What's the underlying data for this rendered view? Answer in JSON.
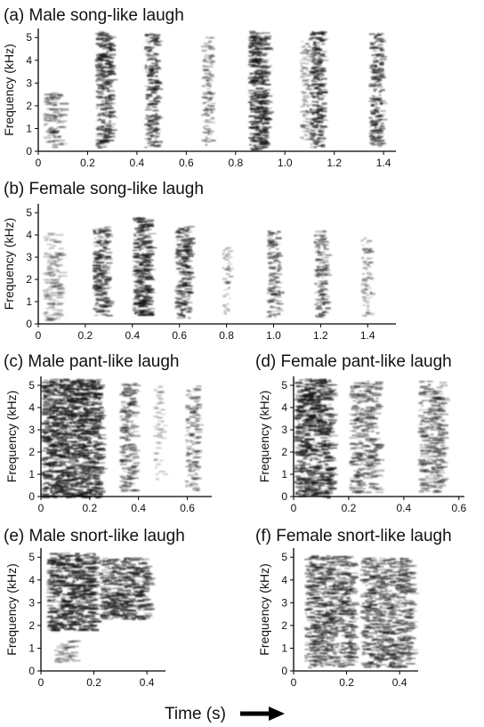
{
  "figure": {
    "x_caption": "Time (s)",
    "arrow_icon": "right-arrow-icon"
  },
  "chart_data": [
    {
      "type": "heatmap",
      "panel": "a",
      "title": "(a) Male song-like laugh",
      "ylabel": "Frequency (kHz)",
      "xlabel": "",
      "xlim": [
        0,
        1.45
      ],
      "ylim": [
        0,
        5.4
      ],
      "xticks": [
        0,
        0.2,
        0.4,
        0.6,
        0.8,
        1.0,
        1.2,
        1.4
      ],
      "xtick_labels": [
        "0",
        "0.2",
        "0.4",
        "0.6",
        "0.8",
        "1.0",
        "1.2",
        "1.4"
      ],
      "yticks": [
        0,
        1,
        2,
        3,
        4,
        5
      ],
      "ytick_labels": [
        "0",
        "1",
        "2",
        "3",
        "4",
        "5"
      ],
      "grid": false,
      "bursts": [
        {
          "t0": 0.02,
          "t1": 0.09,
          "fmin": 0.2,
          "fmax": 2.6,
          "intensity": 0.55
        },
        {
          "t0": 0.23,
          "t1": 0.29,
          "fmin": 0.2,
          "fmax": 5.3,
          "intensity": 0.9
        },
        {
          "t0": 0.43,
          "t1": 0.48,
          "fmin": 0.2,
          "fmax": 5.2,
          "intensity": 0.85
        },
        {
          "t0": 0.66,
          "t1": 0.7,
          "fmin": 0.3,
          "fmax": 5.1,
          "intensity": 0.6
        },
        {
          "t0": 0.85,
          "t1": 0.92,
          "fmin": 0.1,
          "fmax": 5.3,
          "intensity": 0.95
        },
        {
          "t0": 1.06,
          "t1": 1.1,
          "fmin": 0.5,
          "fmax": 5.0,
          "intensity": 0.5
        },
        {
          "t0": 1.1,
          "t1": 1.15,
          "fmin": 0.2,
          "fmax": 5.3,
          "intensity": 0.95
        },
        {
          "t0": 1.34,
          "t1": 1.39,
          "fmin": 0.2,
          "fmax": 5.2,
          "intensity": 0.85
        }
      ]
    },
    {
      "type": "heatmap",
      "panel": "b",
      "title": "(b) Female song-like laugh",
      "ylabel": "Frequency (kHz)",
      "xlabel": "",
      "xlim": [
        0,
        1.52
      ],
      "ylim": [
        0,
        5.4
      ],
      "xticks": [
        0,
        0.2,
        0.4,
        0.6,
        0.8,
        1.0,
        1.2,
        1.4
      ],
      "xtick_labels": [
        "0",
        "0.2",
        "0.4",
        "0.6",
        "0.8",
        "1.0",
        "1.2",
        "1.4"
      ],
      "yticks": [
        0,
        1,
        2,
        3,
        4,
        5
      ],
      "ytick_labels": [
        "0",
        "1",
        "2",
        "3",
        "4",
        "5"
      ],
      "grid": false,
      "bursts": [
        {
          "t0": 0.02,
          "t1": 0.09,
          "fmin": 0.2,
          "fmax": 4.1,
          "intensity": 0.45
        },
        {
          "t0": 0.23,
          "t1": 0.29,
          "fmin": 0.4,
          "fmax": 4.4,
          "intensity": 0.85
        },
        {
          "t0": 0.4,
          "t1": 0.47,
          "fmin": 0.4,
          "fmax": 4.8,
          "intensity": 0.95
        },
        {
          "t0": 0.58,
          "t1": 0.64,
          "fmin": 0.3,
          "fmax": 4.4,
          "intensity": 0.85
        },
        {
          "t0": 0.78,
          "t1": 0.81,
          "fmin": 0.4,
          "fmax": 3.5,
          "intensity": 0.45
        },
        {
          "t0": 0.97,
          "t1": 1.02,
          "fmin": 0.3,
          "fmax": 4.2,
          "intensity": 0.7
        },
        {
          "t0": 1.17,
          "t1": 1.22,
          "fmin": 0.3,
          "fmax": 4.2,
          "intensity": 0.7
        },
        {
          "t0": 1.37,
          "t1": 1.41,
          "fmin": 0.4,
          "fmax": 3.9,
          "intensity": 0.5
        }
      ]
    },
    {
      "type": "heatmap",
      "panel": "c",
      "title": "(c) Male pant-like laugh",
      "ylabel": "Frequency (kHz)",
      "xlabel": "",
      "xlim": [
        0,
        0.7
      ],
      "ylim": [
        0,
        5.4
      ],
      "xticks": [
        0,
        0.2,
        0.4,
        0.6
      ],
      "xtick_labels": [
        "0",
        "0.2",
        "0.4",
        "0.6"
      ],
      "yticks": [
        0,
        1,
        2,
        3,
        4,
        5
      ],
      "ytick_labels": [
        "0",
        "1",
        "2",
        "3",
        "4",
        "5"
      ],
      "grid": false,
      "bursts": [
        {
          "t0": 0.0,
          "t1": 0.24,
          "fmin": 0.0,
          "fmax": 5.3,
          "intensity": 0.95
        },
        {
          "t0": 0.32,
          "t1": 0.38,
          "fmin": 0.2,
          "fmax": 5.2,
          "intensity": 0.65
        },
        {
          "t0": 0.46,
          "t1": 0.5,
          "fmin": 0.8,
          "fmax": 5.0,
          "intensity": 0.3
        },
        {
          "t0": 0.59,
          "t1": 0.64,
          "fmin": 0.3,
          "fmax": 5.0,
          "intensity": 0.6
        }
      ]
    },
    {
      "type": "heatmap",
      "panel": "d",
      "title": "(d) Female pant-like laugh",
      "ylabel": "Frequency (kHz)",
      "xlabel": "",
      "xlim": [
        0,
        0.62
      ],
      "ylim": [
        0,
        5.4
      ],
      "xticks": [
        0,
        0.2,
        0.4,
        0.6
      ],
      "xtick_labels": [
        "0",
        "0.2",
        "0.4",
        "0.6"
      ],
      "yticks": [
        0,
        1,
        2,
        3,
        4,
        5
      ],
      "ytick_labels": [
        "0",
        "1",
        "2",
        "3",
        "4",
        "5"
      ],
      "grid": false,
      "bursts": [
        {
          "t0": 0.0,
          "t1": 0.13,
          "fmin": 0.0,
          "fmax": 5.3,
          "intensity": 0.9
        },
        {
          "t0": 0.2,
          "t1": 0.3,
          "fmin": 0.2,
          "fmax": 5.2,
          "intensity": 0.6
        },
        {
          "t0": 0.45,
          "t1": 0.54,
          "fmin": 0.2,
          "fmax": 5.2,
          "intensity": 0.6
        }
      ]
    },
    {
      "type": "heatmap",
      "panel": "e",
      "title": "(e) Male snort-like laugh",
      "ylabel": "Frequency (kHz)",
      "xlabel": "",
      "xlim": [
        0,
        0.47
      ],
      "ylim": [
        0,
        5.4
      ],
      "xticks": [
        0,
        0.2,
        0.4
      ],
      "xtick_labels": [
        "0",
        "0.2",
        "0.4"
      ],
      "yticks": [
        0,
        1,
        2,
        3,
        4,
        5
      ],
      "ytick_labels": [
        "0",
        "1",
        "2",
        "3",
        "4",
        "5"
      ],
      "grid": false,
      "bursts": [
        {
          "t0": 0.02,
          "t1": 0.2,
          "fmin": 1.8,
          "fmax": 5.2,
          "intensity": 0.9
        },
        {
          "t0": 0.05,
          "t1": 0.12,
          "fmin": 0.4,
          "fmax": 1.4,
          "intensity": 0.5
        },
        {
          "t0": 0.22,
          "t1": 0.4,
          "fmin": 2.3,
          "fmax": 5.0,
          "intensity": 0.8
        }
      ]
    },
    {
      "type": "heatmap",
      "panel": "f",
      "title": "(f) Female snort-like laugh",
      "ylabel": "Frequency (kHz)",
      "xlabel": "",
      "xlim": [
        0,
        0.47
      ],
      "ylim": [
        0,
        5.4
      ],
      "xticks": [
        0,
        0.2,
        0.4
      ],
      "xtick_labels": [
        "0",
        "0.2",
        "0.4"
      ],
      "yticks": [
        0,
        1,
        2,
        3,
        4,
        5
      ],
      "ytick_labels": [
        "0",
        "1",
        "2",
        "3",
        "4",
        "5"
      ],
      "grid": false,
      "bursts": [
        {
          "t0": 0.04,
          "t1": 0.22,
          "fmin": 0.2,
          "fmax": 5.1,
          "intensity": 0.75
        },
        {
          "t0": 0.25,
          "t1": 0.44,
          "fmin": 0.2,
          "fmax": 5.0,
          "intensity": 0.7
        }
      ]
    }
  ]
}
